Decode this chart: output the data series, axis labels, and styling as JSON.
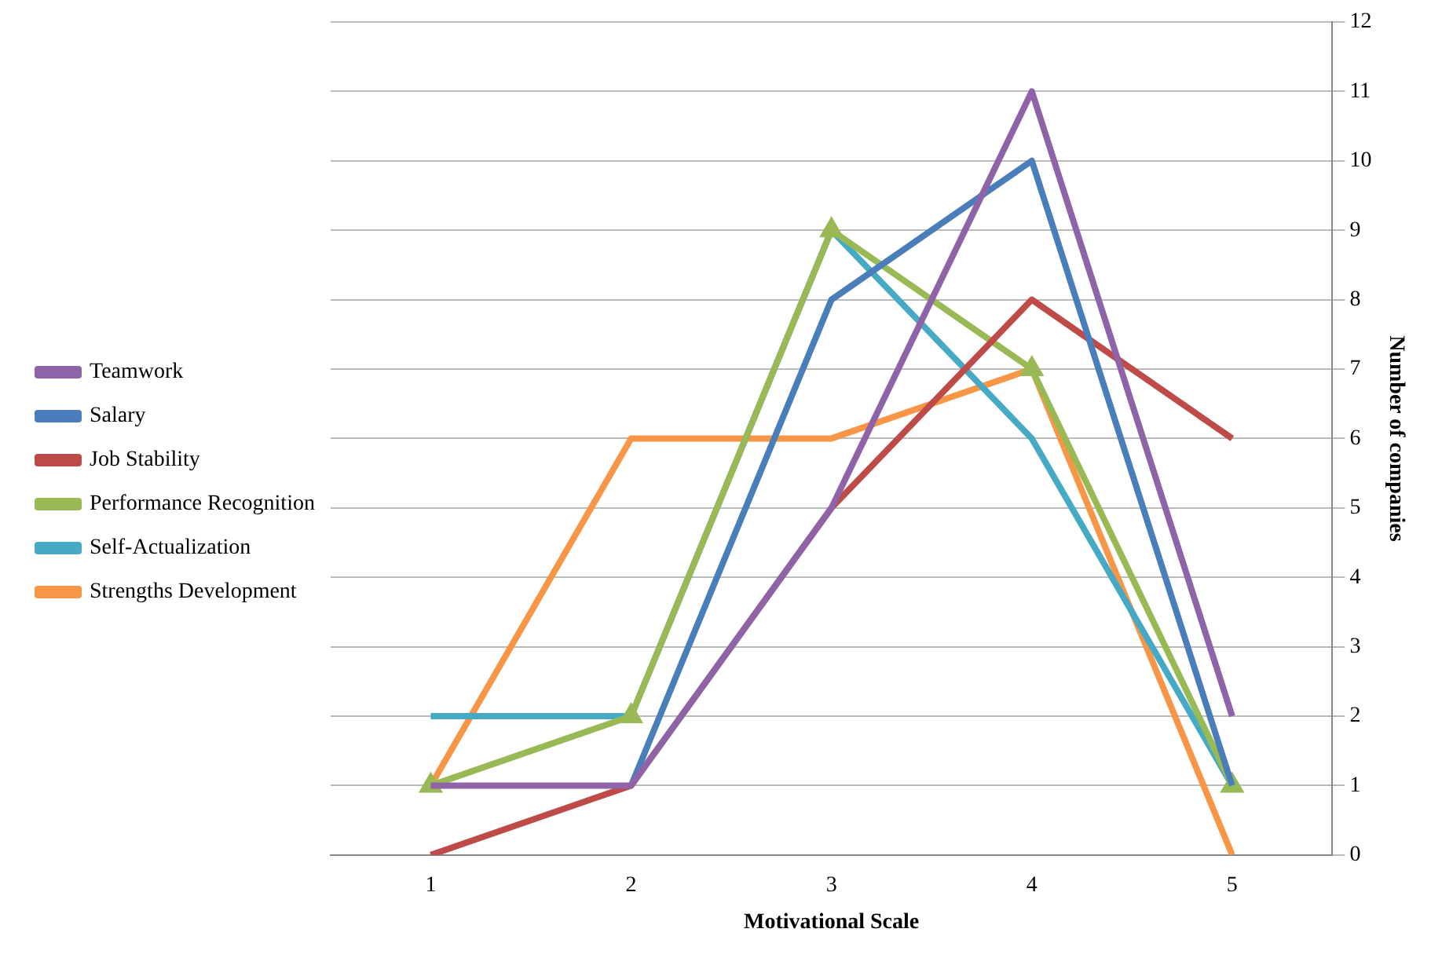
{
  "chart_data": {
    "type": "line",
    "xlabel": "Motivational Scale",
    "ylabel": "Number of companies",
    "categories": [
      "1",
      "2",
      "3",
      "4",
      "5"
    ],
    "series": [
      {
        "name": "Teamwork",
        "color": "#8e63a8",
        "values": [
          1,
          1,
          5,
          11,
          2
        ]
      },
      {
        "name": "Salary",
        "color": "#4a7ebb",
        "values": [
          null,
          1,
          8,
          10,
          1
        ]
      },
      {
        "name": "Job Stability",
        "color": "#be4b48",
        "values": [
          0,
          1,
          5,
          8,
          6
        ]
      },
      {
        "name": "Performance Recognition",
        "color": "#98b954",
        "values": [
          1,
          2,
          9,
          7,
          1
        ],
        "marker": "triangle"
      },
      {
        "name": "Self-Actualization",
        "color": "#46aac5",
        "values": [
          2,
          2,
          9,
          6,
          1
        ]
      },
      {
        "name": "Strengths Development",
        "color": "#f79646",
        "values": [
          1,
          6,
          6,
          7,
          0
        ]
      }
    ],
    "ylim": [
      0,
      12
    ],
    "yticks": [
      0,
      1,
      2,
      3,
      4,
      5,
      6,
      7,
      8,
      9,
      10,
      11,
      12
    ],
    "grid": "y",
    "legend": "left",
    "marker": "none",
    "line_style": "solid"
  }
}
